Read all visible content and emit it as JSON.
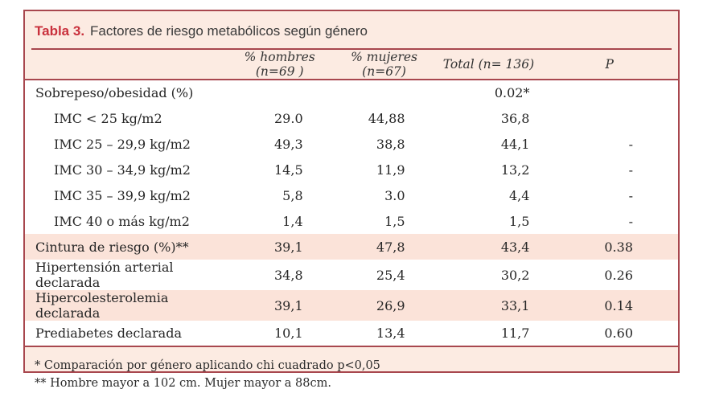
{
  "title": {
    "label": "Tabla 3.",
    "text": "Factores de riesgo metabólicos según género"
  },
  "header": {
    "col_hombres": "% hombres (n=69 )",
    "col_mujeres": "% mujeres (n=67)",
    "col_total": "Total (n= 136)",
    "col_p": "P"
  },
  "rows": [
    {
      "label": "Sobrepeso/obesidad (%)",
      "hombres": "",
      "mujeres": "",
      "total": "0.02*",
      "p": ""
    },
    {
      "label": "IMC < 25 kg/m2",
      "hombres": "29.0",
      "mujeres": "44,88",
      "total": "36,8",
      "p": ""
    },
    {
      "label": "IMC 25 – 29,9 kg/m2",
      "hombres": "49,3",
      "mujeres": "38,8",
      "total": "44,1",
      "p": "-"
    },
    {
      "label": "IMC 30 – 34,9 kg/m2",
      "hombres": "14,5",
      "mujeres": "11,9",
      "total": "13,2",
      "p": "-"
    },
    {
      "label": "IMC 35 – 39,9 kg/m2",
      "hombres": "5,8",
      "mujeres": "3.0",
      "total": "4,4",
      "p": "-"
    },
    {
      "label": "IMC 40 o más kg/m2",
      "hombres": "1,4",
      "mujeres": "1,5",
      "total": "1,5",
      "p": "-"
    },
    {
      "label": "Cintura de riesgo (%)**",
      "hombres": "39,1",
      "mujeres": "47,8",
      "total": "43,4",
      "p": "0.38"
    },
    {
      "label": "Hipertensión arterial declarada",
      "hombres": "34,8",
      "mujeres": "25,4",
      "total": "30,2",
      "p": "0.26"
    },
    {
      "label": "Hipercolesterolemia declarada",
      "hombres": "39,1",
      "mujeres": "26,9",
      "total": "33,1",
      "p": "0.14"
    },
    {
      "label": "Prediabetes declarada",
      "hombres": "10,1",
      "mujeres": "13,4",
      "total": "11,7",
      "p": "0.60"
    }
  ],
  "footnotes": [
    "* Comparación por género aplicando chi cuadrado p<0,05",
    "** Hombre mayor a 102 cm.  Mujer mayor a 88cm."
  ],
  "colors": {
    "accent_red": "#c9303c",
    "border_maroon": "#a8474e",
    "panel_pink": "#fcebe2",
    "stripe_pink": "#fbe3d9"
  }
}
